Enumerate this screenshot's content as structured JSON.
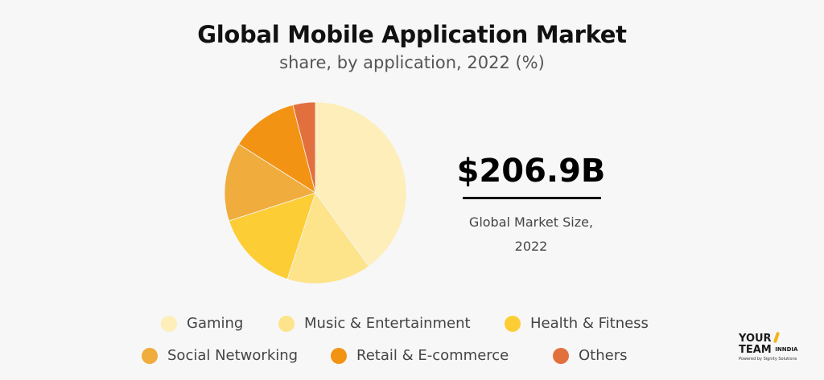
{
  "title": "Global Mobile Application Market",
  "subtitle": "share, by application, 2022 (%)",
  "kpi": {
    "value": "$206.9B",
    "label_line1": "Global Market Size,",
    "label_line2": "2022"
  },
  "brand": {
    "line1": "YOUR",
    "line2_a": "TEAM",
    "line2_b": "IN",
    "line2_c": "NDIA",
    "line3": "Powered by Signity Solutions"
  },
  "chart_data": {
    "type": "pie",
    "categories": [
      "Gaming",
      "Music & Entertainment",
      "Health & Fitness",
      "Social Networking",
      "Retail & E-commerce",
      "Others"
    ],
    "values": [
      40,
      15,
      15,
      14,
      12,
      4
    ],
    "colors": [
      "#fdeeba",
      "#fde38a",
      "#fdcd36",
      "#f0ac3c",
      "#f39313",
      "#e2703f"
    ],
    "legend_position": "bottom"
  }
}
